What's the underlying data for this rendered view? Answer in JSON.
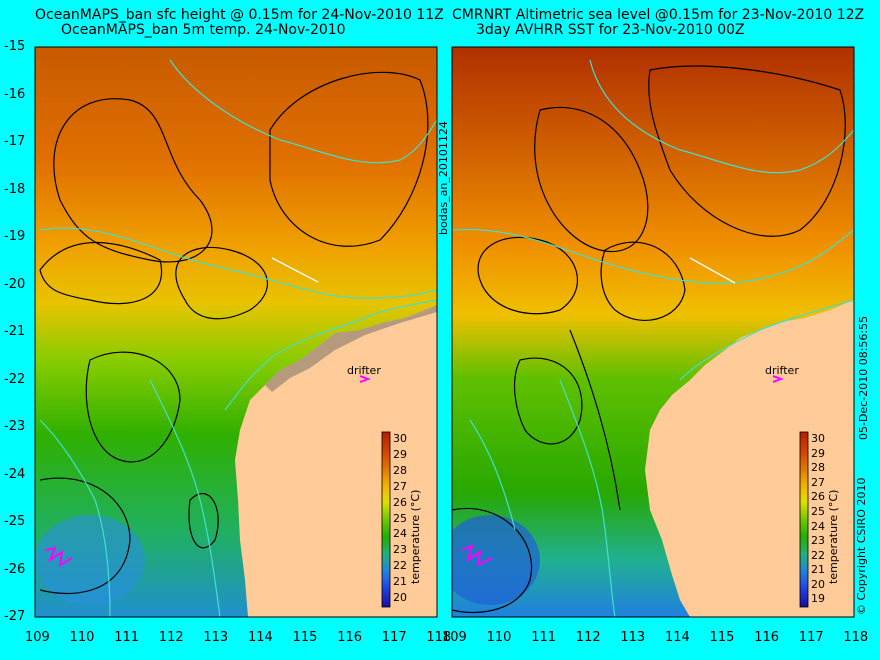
{
  "panels": [
    {
      "id": "left",
      "title_line1": "OceanMAPS_ban sfc height @ 0.15m for 24-Nov-2010 11Z",
      "title_line2": "OceanMAPS_ban 5m temp. 24-Nov-2010",
      "side_label": "bodas_an_20101124",
      "colorbar_ticks": [
        "30",
        "29",
        "28",
        "27",
        "26",
        "25",
        "24",
        "23",
        "22",
        "21",
        "20"
      ],
      "colorbar_label": "temperature (°C)",
      "drifter_label": "drifter"
    },
    {
      "id": "right",
      "title_line1": "CMRNRT Altimetric sea level  @0.15m  for 23-Nov-2010 12Z",
      "title_line2": "3day AVHRR SST for 23-Nov-2010 00Z",
      "side_label": "05-Dec-2010 08:56:55",
      "colorbar_ticks": [
        "30",
        "29",
        "28",
        "27",
        "26",
        "25",
        "24",
        "23",
        "22",
        "21",
        "20",
        "19"
      ],
      "colorbar_label": "temperature (°C)",
      "drifter_label": "drifter"
    }
  ],
  "copyright": "© Copyright CSIRO 2010",
  "lat_ticks": [
    "-15",
    "-16",
    "-17",
    "-18",
    "-19",
    "-20",
    "-21",
    "-22",
    "-23",
    "-24",
    "-25",
    "-26",
    "-27"
  ],
  "lon_ticks": [
    "109",
    "110",
    "111",
    "112",
    "113",
    "114",
    "115",
    "116",
    "117",
    "118"
  ],
  "colors": {
    "background": "#00ffff",
    "land": "#ffcc99",
    "coast_shelf": "#b59a7e",
    "contour_line": "#000000",
    "isobath": "#40e0d0",
    "drifter": "#ff00ff"
  }
}
